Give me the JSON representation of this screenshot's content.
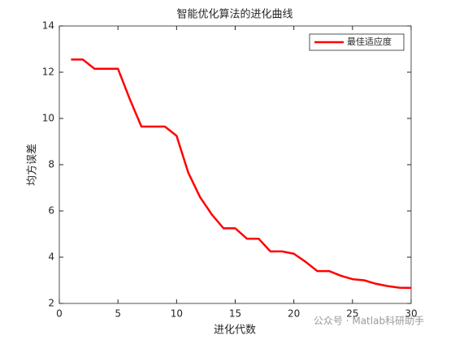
{
  "chart_data": {
    "type": "line",
    "title": "智能优化算法的进化曲线",
    "x_label": "进化代数",
    "y_label": "均方误差",
    "x": [
      1,
      2,
      3,
      4,
      5,
      6,
      7,
      8,
      9,
      10,
      11,
      12,
      13,
      14,
      15,
      16,
      17,
      18,
      19,
      20,
      21,
      22,
      23,
      24,
      25,
      26,
      27,
      28,
      29,
      30
    ],
    "series": [
      {
        "name": "最佳适应度",
        "color": "#ff0000",
        "values": [
          12.55,
          12.55,
          12.15,
          12.15,
          12.15,
          10.85,
          9.65,
          9.65,
          9.65,
          9.25,
          7.65,
          6.6,
          5.85,
          5.25,
          5.25,
          4.8,
          4.8,
          4.25,
          4.25,
          4.15,
          3.8,
          3.4,
          3.4,
          3.2,
          3.05,
          3.0,
          2.85,
          2.75,
          2.68,
          2.67
        ]
      }
    ],
    "xlim": [
      0,
      30
    ],
    "xticks": [
      0,
      5,
      10,
      15,
      20,
      25,
      30
    ],
    "ylim": [
      2,
      14
    ],
    "yticks": [
      2,
      4,
      6,
      8,
      10,
      12,
      14
    ],
    "legend": "top-right",
    "grid": false,
    "watermark": "公众号 · Matlab科研助手"
  }
}
